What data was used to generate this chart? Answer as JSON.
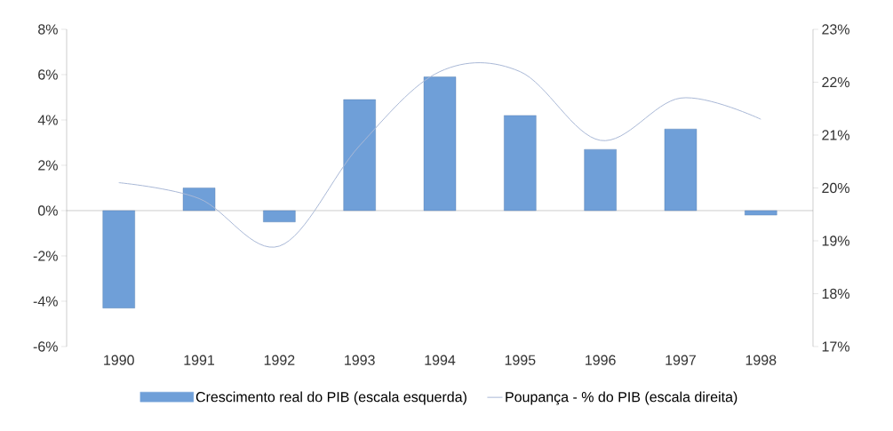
{
  "chart_data": {
    "type": "bar",
    "categories": [
      "1990",
      "1991",
      "1992",
      "1993",
      "1994",
      "1995",
      "1996",
      "1997",
      "1998"
    ],
    "series": [
      {
        "name": "Crescimento real do PIB (escala esquerda)",
        "color": "#6f9fd8",
        "values": [
          -4.3,
          1.0,
          -0.5,
          4.9,
          5.9,
          4.2,
          2.7,
          3.6,
          -0.2
        ]
      },
      {
        "name": "Poupança - % do PIB (escala direita)",
        "type": "line",
        "axis": "y2",
        "color": "#a9b8d6",
        "values": [
          20.1,
          19.8,
          18.9,
          20.8,
          22.2,
          22.2,
          20.9,
          21.7,
          21.3
        ]
      }
    ],
    "ylim": [
      -6,
      8
    ],
    "yticks": [
      {
        "value": -6,
        "label": "-6%"
      },
      {
        "value": -4,
        "label": "-4%"
      },
      {
        "value": -2,
        "label": "-2%"
      },
      {
        "value": 0,
        "label": "0%"
      },
      {
        "value": 2,
        "label": "2%"
      },
      {
        "value": 4,
        "label": "4%"
      },
      {
        "value": 6,
        "label": "6%"
      },
      {
        "value": 8,
        "label": "8%"
      }
    ],
    "y2lim": [
      17,
      23
    ],
    "y2ticks": [
      {
        "value": 17,
        "label": "17%"
      },
      {
        "value": 18,
        "label": "18%"
      },
      {
        "value": 19,
        "label": "19%"
      },
      {
        "value": 20,
        "label": "20%"
      },
      {
        "value": 21,
        "label": "21%"
      },
      {
        "value": 22,
        "label": "22%"
      },
      {
        "value": 23,
        "label": "23%"
      }
    ],
    "legend": "bottom",
    "marker": "none"
  }
}
